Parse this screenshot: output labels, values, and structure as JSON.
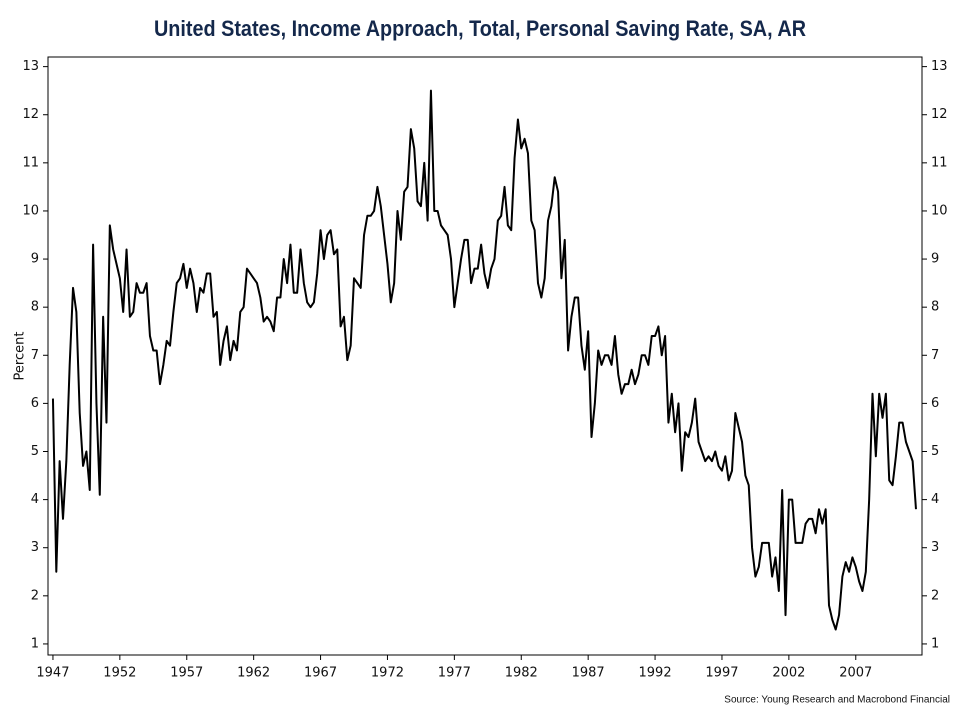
{
  "chart_data": {
    "type": "line",
    "title": "United States, Income Approach, Total, Personal Saving Rate, SA, AR",
    "y_label": "Percent",
    "source": "Source: Young Research and Macrobond Financial",
    "color": "#000000",
    "xlim": [
      1946.63,
      2011.95
    ],
    "xticks": [
      1947,
      1952,
      1957,
      1962,
      1967,
      1972,
      1977,
      1982,
      1987,
      1992,
      1997,
      2002,
      2007
    ],
    "ylim": [
      0.77,
      13.2
    ],
    "yticks": [
      1,
      2,
      3,
      4,
      5,
      6,
      7,
      8,
      9,
      10,
      11,
      12,
      13
    ],
    "x": [
      1947,
      1947.25,
      1947.5,
      1947.75,
      1948,
      1948.25,
      1948.5,
      1948.75,
      1949,
      1949.25,
      1949.5,
      1949.75,
      1950,
      1950.25,
      1950.5,
      1950.75,
      1951,
      1951.25,
      1951.5,
      1951.75,
      1952,
      1952.25,
      1952.5,
      1952.75,
      1953,
      1953.25,
      1953.5,
      1953.75,
      1954,
      1954.25,
      1954.5,
      1954.75,
      1955,
      1955.25,
      1955.5,
      1955.75,
      1956,
      1956.25,
      1956.5,
      1956.75,
      1957,
      1957.25,
      1957.5,
      1957.75,
      1958,
      1958.25,
      1958.5,
      1958.75,
      1959,
      1959.25,
      1959.5,
      1959.75,
      1960,
      1960.25,
      1960.5,
      1960.75,
      1961,
      1961.25,
      1961.5,
      1961.75,
      1962,
      1962.25,
      1962.5,
      1962.75,
      1963,
      1963.25,
      1963.5,
      1963.75,
      1964,
      1964.25,
      1964.5,
      1964.75,
      1965,
      1965.25,
      1965.5,
      1965.75,
      1966,
      1966.25,
      1966.5,
      1966.75,
      1967,
      1967.25,
      1967.5,
      1967.75,
      1968,
      1968.25,
      1968.5,
      1968.75,
      1969,
      1969.25,
      1969.5,
      1969.75,
      1970,
      1970.25,
      1970.5,
      1970.75,
      1971,
      1971.25,
      1971.5,
      1971.75,
      1972,
      1972.25,
      1972.5,
      1972.75,
      1973,
      1973.25,
      1973.5,
      1973.75,
      1974,
      1974.25,
      1974.5,
      1974.75,
      1975,
      1975.25,
      1975.5,
      1975.75,
      1976,
      1976.25,
      1976.5,
      1976.75,
      1977,
      1977.25,
      1977.5,
      1977.75,
      1978,
      1978.25,
      1978.5,
      1978.75,
      1979,
      1979.25,
      1979.5,
      1979.75,
      1980,
      1980.25,
      1980.5,
      1980.75,
      1981,
      1981.25,
      1981.5,
      1981.75,
      1982,
      1982.25,
      1982.5,
      1982.75,
      1983,
      1983.25,
      1983.5,
      1983.75,
      1984,
      1984.25,
      1984.5,
      1984.75,
      1985,
      1985.25,
      1985.5,
      1985.75,
      1986,
      1986.25,
      1986.5,
      1986.75,
      1987,
      1987.25,
      1987.5,
      1987.75,
      1988,
      1988.25,
      1988.5,
      1988.75,
      1989,
      1989.25,
      1989.5,
      1989.75,
      1990,
      1990.25,
      1990.5,
      1990.75,
      1991,
      1991.25,
      1991.5,
      1991.75,
      1992,
      1992.25,
      1992.5,
      1992.75,
      1993,
      1993.25,
      1993.5,
      1993.75,
      1994,
      1994.25,
      1994.5,
      1994.75,
      1995,
      1995.25,
      1995.5,
      1995.75,
      1996,
      1996.25,
      1996.5,
      1996.75,
      1997,
      1997.25,
      1997.5,
      1997.75,
      1998,
      1998.25,
      1998.5,
      1998.75,
      1999,
      1999.25,
      1999.5,
      1999.75,
      2000,
      2000.25,
      2000.5,
      2000.75,
      2001,
      2001.25,
      2001.5,
      2001.75,
      2002,
      2002.25,
      2002.5,
      2002.75,
      2003,
      2003.25,
      2003.5,
      2003.75,
      2004,
      2004.25,
      2004.5,
      2004.75,
      2005,
      2005.25,
      2005.5,
      2005.75,
      2006,
      2006.25,
      2006.5,
      2006.75,
      2007,
      2007.25,
      2007.5,
      2007.75,
      2008,
      2008.25,
      2008.5,
      2008.75,
      2009,
      2009.25,
      2009.5,
      2009.75,
      2010,
      2010.25,
      2010.5,
      2010.75,
      2011,
      2011.25,
      2011.5
    ],
    "values": [
      6.1,
      2.5,
      4.8,
      3.6,
      4.8,
      6.8,
      8.4,
      7.9,
      5.8,
      4.7,
      5.0,
      4.2,
      9.3,
      6.0,
      4.1,
      7.8,
      5.6,
      9.7,
      9.2,
      8.9,
      8.6,
      7.9,
      9.2,
      7.8,
      7.9,
      8.5,
      8.3,
      8.3,
      8.5,
      7.4,
      7.1,
      7.1,
      6.4,
      6.8,
      7.3,
      7.2,
      7.9,
      8.5,
      8.6,
      8.9,
      8.4,
      8.8,
      8.5,
      7.9,
      8.4,
      8.3,
      8.7,
      8.7,
      7.8,
      7.9,
      6.8,
      7.3,
      7.6,
      6.9,
      7.3,
      7.1,
      7.9,
      8.0,
      8.8,
      8.7,
      8.6,
      8.5,
      8.2,
      7.7,
      7.8,
      7.7,
      7.5,
      8.2,
      8.2,
      9.0,
      8.5,
      9.3,
      8.3,
      8.3,
      9.2,
      8.5,
      8.1,
      8.0,
      8.1,
      8.7,
      9.6,
      9.0,
      9.5,
      9.6,
      9.1,
      9.2,
      7.6,
      7.8,
      6.9,
      7.2,
      8.6,
      8.5,
      8.4,
      9.5,
      9.9,
      9.9,
      10.0,
      10.5,
      10.1,
      9.5,
      8.9,
      8.1,
      8.5,
      10.0,
      9.4,
      10.4,
      10.5,
      11.7,
      11.3,
      10.2,
      10.1,
      11.0,
      9.8,
      12.5,
      10.0,
      10.0,
      9.7,
      9.6,
      9.5,
      9.0,
      8.0,
      8.5,
      9.0,
      9.4,
      9.4,
      8.5,
      8.8,
      8.8,
      9.3,
      8.7,
      8.4,
      8.8,
      9.0,
      9.8,
      9.9,
      10.5,
      9.7,
      9.6,
      11.1,
      11.9,
      11.3,
      11.5,
      11.2,
      9.8,
      9.6,
      8.5,
      8.2,
      8.6,
      9.8,
      10.1,
      10.7,
      10.4,
      8.6,
      9.4,
      7.1,
      7.8,
      8.2,
      8.2,
      7.2,
      6.7,
      7.5,
      5.3,
      6.0,
      7.1,
      6.8,
      7.0,
      7.0,
      6.8,
      7.4,
      6.6,
      6.2,
      6.4,
      6.4,
      6.7,
      6.4,
      6.6,
      7.0,
      7.0,
      6.8,
      7.4,
      7.4,
      7.6,
      7.0,
      7.4,
      5.6,
      6.2,
      5.4,
      6.0,
      4.6,
      5.4,
      5.3,
      5.6,
      6.1,
      5.2,
      5.0,
      4.8,
      4.9,
      4.8,
      5.0,
      4.7,
      4.6,
      4.9,
      4.4,
      4.6,
      5.8,
      5.5,
      5.2,
      4.5,
      4.3,
      3.0,
      2.4,
      2.6,
      3.1,
      3.1,
      3.1,
      2.4,
      2.8,
      2.1,
      4.2,
      1.6,
      4.0,
      4.0,
      3.1,
      3.1,
      3.1,
      3.5,
      3.6,
      3.6,
      3.3,
      3.8,
      3.5,
      3.8,
      1.8,
      1.5,
      1.3,
      1.6,
      2.4,
      2.7,
      2.5,
      2.8,
      2.6,
      2.3,
      2.1,
      2.5,
      4.0,
      6.2,
      4.9,
      6.2,
      5.7,
      6.2,
      4.4,
      4.3,
      4.9,
      5.6,
      5.6,
      5.2,
      5.0,
      4.8,
      3.8
    ]
  }
}
